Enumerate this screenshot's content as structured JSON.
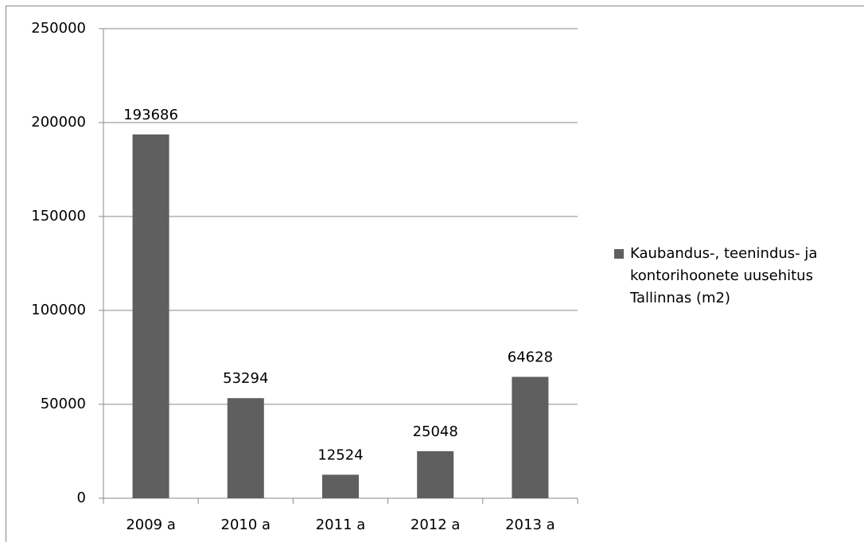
{
  "chart_data": {
    "type": "bar",
    "categories": [
      "2009 a",
      "2010 a",
      "2011 a",
      "2012 a",
      "2013 a"
    ],
    "series": [
      {
        "name": "Kaubandus-, teenindus- ja kontorihoonete uusehitus Tallinnas (m2)",
        "color": "#5f5f5f",
        "values": [
          193686,
          53294,
          12524,
          25048,
          64628
        ]
      }
    ],
    "ylim": [
      0,
      250000
    ],
    "yticks": [
      0,
      50000,
      100000,
      150000,
      200000,
      250000
    ],
    "grid": true,
    "legend": "right"
  }
}
